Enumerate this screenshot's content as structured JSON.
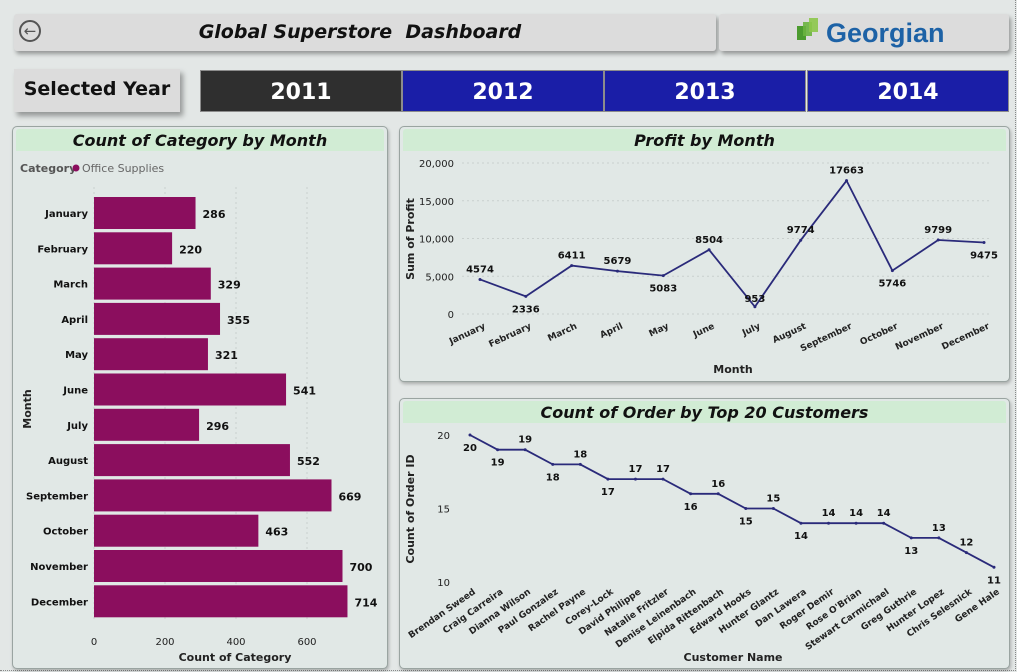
{
  "header": {
    "title": "Global Superstore  Dashboard",
    "back_icon": "back-arrow-icon"
  },
  "logo": {
    "text": "Georgian",
    "colors": [
      "#4c9b2f",
      "#1d62a6"
    ]
  },
  "year_selector": {
    "label": "Selected Year",
    "years": [
      "2011",
      "2012",
      "2013",
      "2014"
    ],
    "selected": "2011"
  },
  "charts": {
    "category": {
      "title": "Count of Category by Month",
      "legend_label": "Category",
      "legend_item": "Office Supplies"
    },
    "profit": {
      "title": "Profit by Month"
    },
    "customers": {
      "title": "Count of Order by Top 20 Customers"
    }
  },
  "chart_data": [
    {
      "type": "bar",
      "orientation": "horizontal",
      "title": "Count of Category by Month",
      "xlabel": "Count of Category",
      "ylabel": "Month",
      "legend_title": "Category",
      "series": [
        {
          "name": "Office Supplies",
          "color": "#8b0e5e",
          "values": [
            286,
            220,
            329,
            355,
            321,
            541,
            296,
            552,
            669,
            463,
            700,
            714
          ]
        }
      ],
      "categories": [
        "January",
        "February",
        "March",
        "April",
        "May",
        "June",
        "July",
        "August",
        "September",
        "October",
        "November",
        "December"
      ],
      "xlim": [
        0,
        800
      ],
      "xticks": [
        "0",
        "200",
        "400",
        "600"
      ],
      "grid": true
    },
    {
      "type": "line",
      "title": "Profit by Month",
      "xlabel": "Month",
      "ylabel": "Sum of Profit",
      "categories": [
        "January",
        "February",
        "March",
        "April",
        "May",
        "June",
        "July",
        "August",
        "September",
        "October",
        "November",
        "December"
      ],
      "values": [
        4574,
        2336,
        6411,
        5679,
        5083,
        8504,
        953,
        9774,
        17663,
        5746,
        9799,
        9475
      ],
      "ylim": [
        0,
        20000
      ],
      "yticks": [
        "0",
        "5,000",
        "10,000",
        "15,000",
        "20,000"
      ],
      "color": "#2a2a7a",
      "grid": true
    },
    {
      "type": "line",
      "title": "Count of Order by Top 20 Customers",
      "xlabel": "Customer Name",
      "ylabel": "Count of Order ID",
      "categories": [
        "Brendan Sweed",
        "Craig Carreira",
        "Dianna Wilson",
        "Paul Gonzalez",
        "Rachel Payne",
        "Corey-Lock",
        "David Philippe",
        "Natalie Fritzler",
        "Denise Leinenbach",
        "Elpida Rittenbach",
        "Edward Hooks",
        "Hunter Glantz",
        "Dan Lawera",
        "Roger Demir",
        "Rose O'Brian",
        "Stewart Carmichael",
        "Greg Guthrie",
        "Hunter Lopez",
        "Chris Selesnick",
        "Gene Hale"
      ],
      "values": [
        20,
        19,
        19,
        18,
        18,
        17,
        17,
        17,
        16,
        16,
        15,
        15,
        14,
        14,
        14,
        14,
        13,
        13,
        12,
        11
      ],
      "ylim": [
        10,
        20
      ],
      "yticks": [
        "10",
        "15",
        "20"
      ],
      "color": "#2a2a7a",
      "grid": false
    }
  ]
}
